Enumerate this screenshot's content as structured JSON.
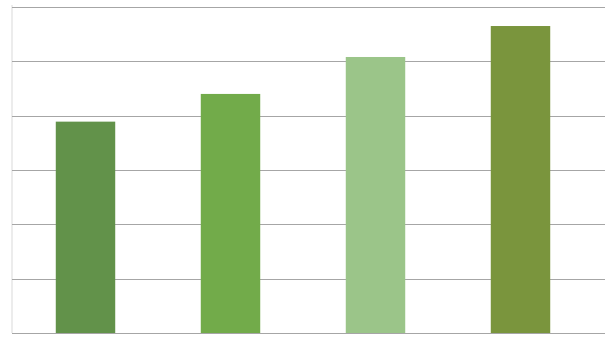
{
  "chart_data": {
    "type": "bar",
    "categories": [
      null,
      null,
      null,
      null
    ],
    "values": [
      3.89,
      4.4,
      5.08,
      5.65
    ],
    "colors": [
      "#62924a",
      "#72ab4a",
      "#9bc589",
      "#7a953d"
    ],
    "ylim": [
      0,
      6
    ],
    "yticks": [
      0,
      1,
      2,
      3,
      4,
      5,
      6
    ],
    "grid": true
  }
}
